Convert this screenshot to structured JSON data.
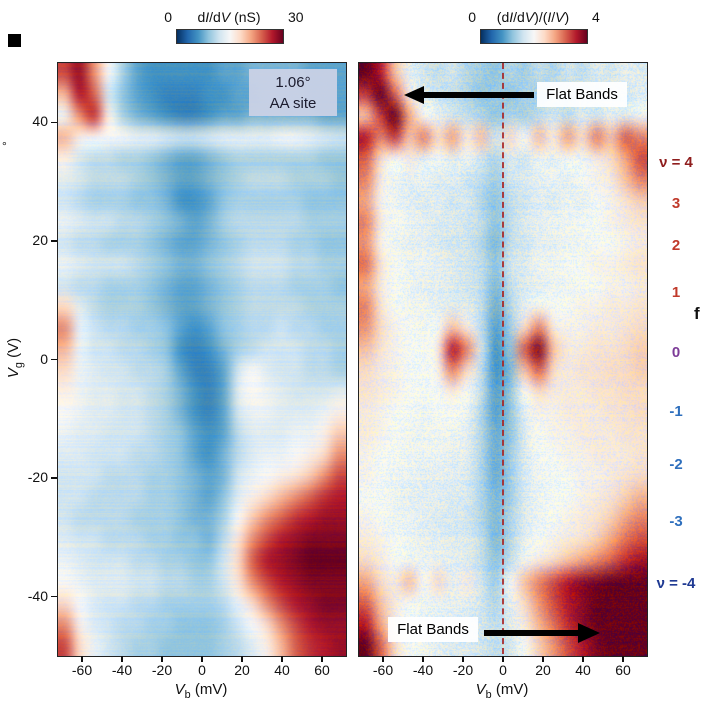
{
  "figure": {
    "degree_stray": "°",
    "panel_f": "f"
  },
  "colorbars": [
    {
      "min": "0",
      "max": "30",
      "title_html": "d<i>I</i>/d<i>V</i> (nS)"
    },
    {
      "min": "0",
      "max": "4",
      "title_html": "(d<i>I</i>/d<i>V</i>)/(<i>I</i>/<i>V</i>)"
    }
  ],
  "axes": {
    "x_label_html": "<i>V</i><sub>b</sub> (mV)",
    "y_label_html": "<i>V</i><sub>g</sub> (V)"
  },
  "annotations": {
    "angle": "1.06°",
    "site": "AA site",
    "flat_bands_top": "Flat Bands",
    "flat_bands_bottom": "Flat Bands"
  },
  "nu_labels": [
    {
      "text": "ν = 4",
      "vg": 33,
      "color": "#8f1d1d"
    },
    {
      "text": "3",
      "vg": 26,
      "color": "#c03a2b"
    },
    {
      "text": "2",
      "vg": 19,
      "color": "#c03a2b"
    },
    {
      "text": "1",
      "vg": 11,
      "color": "#c03a2b"
    },
    {
      "text": "0",
      "vg": 1,
      "color": "#7d3c98"
    },
    {
      "text": "-1",
      "vg": -9,
      "color": "#2e6fbd"
    },
    {
      "text": "-2",
      "vg": -18,
      "color": "#2e6fbd"
    },
    {
      "text": "-3",
      "vg": -27.5,
      "color": "#2e6fbd"
    },
    {
      "text": "ν = -4",
      "vg": -38,
      "color": "#1f3a93"
    }
  ],
  "chart_data": [
    {
      "type": "heatmap",
      "title": "dI/dV (nS) map, 1.06° AA site",
      "xlabel": "V_b (mV)",
      "ylabel": "V_g (V)",
      "x_range": [
        -72,
        72
      ],
      "y_range": [
        -50,
        50
      ],
      "x_ticks": [
        -60,
        -40,
        -20,
        0,
        20,
        40,
        60
      ],
      "y_ticks": [
        40,
        20,
        0,
        -20,
        -40
      ],
      "colormap": "RdBu_r",
      "colorbar": {
        "min": 0,
        "max": 30,
        "label": "dI/dV (nS)"
      },
      "grid_cols": 20,
      "grid_rows": 28,
      "noise": 0.035,
      "row_noise": 0.045,
      "values": [
        [
          25,
          28,
          22,
          15,
          10,
          7,
          6,
          6,
          6,
          6,
          6,
          7,
          7,
          8,
          8,
          8,
          8,
          7,
          7,
          7
        ],
        [
          20,
          27,
          24,
          12,
          9,
          7,
          6,
          5,
          5,
          5,
          6,
          6,
          7,
          7,
          8,
          8,
          8,
          7,
          7,
          7
        ],
        [
          14,
          22,
          26,
          16,
          10,
          8,
          7,
          6,
          5,
          5,
          6,
          7,
          7,
          8,
          8,
          8,
          8,
          8,
          7,
          7
        ],
        [
          20,
          16,
          15,
          15,
          15,
          14,
          14,
          13,
          12,
          12,
          13,
          14,
          14,
          14,
          14,
          15,
          15,
          14,
          13,
          12
        ],
        [
          16,
          12,
          11,
          11,
          10,
          10,
          9,
          8,
          7,
          7,
          8,
          9,
          10,
          10,
          10,
          10,
          10,
          10,
          9,
          9
        ],
        [
          13,
          12,
          11,
          11,
          11,
          10,
          9,
          8,
          7,
          7,
          8,
          9,
          10,
          11,
          11,
          11,
          10,
          10,
          10,
          9
        ],
        [
          12,
          11,
          10,
          10,
          10,
          9,
          9,
          8,
          6,
          6,
          7,
          9,
          10,
          10,
          10,
          10,
          10,
          9,
          9,
          9
        ],
        [
          14,
          13,
          12,
          12,
          11,
          11,
          10,
          9,
          8,
          7,
          8,
          10,
          11,
          11,
          11,
          11,
          11,
          10,
          10,
          10
        ],
        [
          12,
          11,
          11,
          10,
          10,
          10,
          9,
          8,
          7,
          7,
          8,
          9,
          10,
          11,
          11,
          11,
          10,
          10,
          9,
          9
        ],
        [
          14,
          13,
          12,
          12,
          12,
          11,
          10,
          9,
          8,
          8,
          9,
          10,
          11,
          12,
          12,
          12,
          11,
          11,
          10,
          10
        ],
        [
          12,
          11,
          11,
          10,
          10,
          10,
          9,
          8,
          7,
          7,
          8,
          9,
          10,
          11,
          11,
          11,
          10,
          10,
          10,
          9
        ],
        [
          18,
          13,
          11,
          10,
          10,
          10,
          9,
          8,
          7,
          7,
          8,
          9,
          10,
          11,
          11,
          11,
          11,
          10,
          10,
          10
        ],
        [
          22,
          14,
          12,
          11,
          11,
          10,
          10,
          9,
          7,
          6,
          7,
          9,
          10,
          11,
          11,
          12,
          11,
          11,
          10,
          10
        ],
        [
          20,
          14,
          12,
          12,
          11,
          11,
          10,
          9,
          6,
          5,
          6,
          8,
          10,
          11,
          12,
          12,
          12,
          11,
          11,
          10
        ],
        [
          18,
          14,
          13,
          12,
          12,
          11,
          11,
          10,
          7,
          5,
          5,
          7,
          12,
          15,
          13,
          12,
          12,
          11,
          11,
          10
        ],
        [
          16,
          14,
          13,
          13,
          12,
          12,
          11,
          10,
          8,
          6,
          5,
          7,
          13,
          15,
          14,
          13,
          12,
          12,
          12,
          13
        ],
        [
          15,
          14,
          13,
          13,
          12,
          12,
          11,
          10,
          8,
          6,
          5,
          7,
          12,
          14,
          14,
          13,
          13,
          13,
          14,
          16
        ],
        [
          14,
          13,
          13,
          12,
          12,
          12,
          11,
          10,
          9,
          7,
          6,
          7,
          11,
          13,
          13,
          13,
          14,
          14,
          16,
          19
        ],
        [
          13,
          13,
          12,
          12,
          12,
          11,
          11,
          10,
          9,
          7,
          6,
          8,
          11,
          13,
          14,
          14,
          15,
          16,
          18,
          22
        ],
        [
          12,
          12,
          12,
          11,
          11,
          11,
          10,
          10,
          9,
          8,
          7,
          8,
          12,
          14,
          15,
          16,
          17,
          19,
          22,
          25
        ],
        [
          12,
          12,
          11,
          11,
          11,
          11,
          10,
          10,
          9,
          8,
          7,
          9,
          13,
          16,
          18,
          20,
          22,
          24,
          26,
          27
        ],
        [
          12,
          11,
          11,
          11,
          11,
          10,
          10,
          10,
          9,
          8,
          8,
          10,
          15,
          19,
          22,
          24,
          26,
          27,
          28,
          28
        ],
        [
          13,
          12,
          12,
          11,
          11,
          11,
          10,
          10,
          9,
          9,
          8,
          11,
          17,
          22,
          25,
          27,
          28,
          29,
          29,
          29
        ],
        [
          14,
          13,
          12,
          12,
          12,
          11,
          11,
          10,
          10,
          9,
          9,
          12,
          18,
          24,
          27,
          28,
          29,
          30,
          30,
          30
        ],
        [
          15,
          14,
          13,
          13,
          13,
          12,
          12,
          11,
          11,
          10,
          10,
          12,
          17,
          22,
          25,
          27,
          28,
          29,
          29,
          29
        ],
        [
          18,
          15,
          13,
          12,
          12,
          11,
          11,
          10,
          10,
          10,
          10,
          11,
          14,
          18,
          22,
          25,
          27,
          28,
          29,
          29
        ],
        [
          22,
          16,
          13,
          12,
          11,
          11,
          10,
          10,
          9,
          9,
          9,
          10,
          12,
          15,
          18,
          22,
          25,
          27,
          28,
          28
        ],
        [
          25,
          18,
          14,
          12,
          11,
          10,
          10,
          9,
          9,
          9,
          9,
          10,
          11,
          13,
          16,
          20,
          24,
          26,
          27,
          28
        ]
      ]
    },
    {
      "type": "heatmap",
      "title": "(dI/dV)/(I/V) map with flat-band features",
      "xlabel": "V_b (mV)",
      "ylabel": "V_g (V)",
      "x_range": [
        -72,
        72
      ],
      "y_range": [
        -50,
        50
      ],
      "x_ticks": [
        -60,
        -40,
        -20,
        0,
        20,
        40,
        60
      ],
      "y_ticks": [
        40,
        20,
        0,
        -20,
        -40
      ],
      "colormap": "RdBu_r",
      "colorbar": {
        "min": 0,
        "max": 4,
        "label": "(dI/dV)/(I/V)"
      },
      "grid_cols": 20,
      "grid_rows": 28,
      "noise": 0.13,
      "row_noise": 0.04,
      "values": [
        [
          4,
          3.6,
          2.6,
          1.8,
          1.6,
          1.5,
          1.6,
          1.4,
          1.3,
          1.2,
          1.4,
          1.3,
          1.5,
          1.4,
          1.6,
          1.5,
          1.7,
          1.6,
          1.8,
          1.7
        ],
        [
          3.4,
          4,
          3.2,
          2.2,
          1.7,
          1.6,
          1.5,
          1.4,
          1.2,
          1.3,
          1.2,
          1.4,
          1.3,
          1.5,
          1.4,
          1.6,
          1.5,
          1.7,
          1.6,
          1.8
        ],
        [
          2.6,
          3.4,
          4,
          2.8,
          2,
          1.8,
          1.6,
          1.5,
          1.4,
          1.2,
          1.4,
          1.3,
          1.5,
          1.6,
          1.5,
          1.7,
          1.6,
          1.8,
          1.7,
          1.9
        ],
        [
          3.6,
          3,
          3.4,
          2.6,
          3,
          2.4,
          2.8,
          2.2,
          2.6,
          1.6,
          2.4,
          2,
          2.6,
          2.2,
          2.8,
          2.4,
          3,
          2.6,
          3.2,
          3
        ],
        [
          3.2,
          2.4,
          2,
          2.2,
          1.8,
          2,
          1.7,
          1.9,
          1.6,
          1.4,
          1.7,
          1.6,
          1.9,
          1.8,
          2,
          1.9,
          2.2,
          2.4,
          2.8,
          3.3
        ],
        [
          3,
          2.2,
          1.9,
          1.8,
          1.9,
          1.7,
          1.8,
          1.6,
          1.5,
          1.3,
          1.6,
          1.7,
          1.8,
          1.9,
          1.8,
          2,
          2.1,
          2.2,
          2.6,
          3
        ],
        [
          2.8,
          2.1,
          1.9,
          1.8,
          1.7,
          1.8,
          1.6,
          1.7,
          1.4,
          1.2,
          1.5,
          1.6,
          1.8,
          1.7,
          1.9,
          1.8,
          2,
          2.1,
          2.3,
          2.5
        ],
        [
          3,
          2.2,
          2,
          1.9,
          1.8,
          1.7,
          1.7,
          1.6,
          1.5,
          1.2,
          1.5,
          1.7,
          1.8,
          1.9,
          1.9,
          2,
          2,
          2.1,
          2.2,
          2.3
        ],
        [
          2.9,
          2.1,
          1.9,
          1.8,
          1.8,
          1.7,
          1.6,
          1.6,
          1.4,
          1.1,
          1.5,
          1.6,
          1.8,
          1.8,
          1.9,
          1.9,
          2,
          2,
          2.1,
          2.2
        ],
        [
          3.1,
          2.3,
          2,
          1.9,
          1.9,
          1.8,
          1.7,
          1.6,
          1.5,
          1.2,
          1.6,
          1.7,
          1.9,
          1.9,
          2,
          2,
          2.1,
          2.1,
          2.2,
          2.3
        ],
        [
          2.8,
          2.2,
          2,
          1.9,
          1.8,
          1.8,
          1.7,
          1.6,
          1.5,
          1.1,
          1.5,
          1.7,
          1.8,
          1.9,
          1.9,
          2,
          2,
          2.1,
          2.1,
          2.2
        ],
        [
          3,
          2.3,
          2,
          1.9,
          1.9,
          1.8,
          1.7,
          1.7,
          1.5,
          1,
          1.4,
          1.8,
          1.9,
          2,
          2,
          2.1,
          2.1,
          2.2,
          2.2,
          2.3
        ],
        [
          2.9,
          2.4,
          2.1,
          2,
          1.9,
          2,
          2.6,
          2.2,
          1.5,
          0.9,
          1.3,
          2.4,
          3,
          2.2,
          2.1,
          2.1,
          2.2,
          2.2,
          2.3,
          2.4
        ],
        [
          2.6,
          2.3,
          2.1,
          2,
          2,
          2.2,
          3.6,
          3,
          1.6,
          0.8,
          1.2,
          3.2,
          3.9,
          2.6,
          2.2,
          2.2,
          2.3,
          2.3,
          2.4,
          2.5
        ],
        [
          2.4,
          2.2,
          2.1,
          2,
          2,
          2.1,
          3,
          2.4,
          1.5,
          0.8,
          1.1,
          2.6,
          3.2,
          2.4,
          2.2,
          2.3,
          2.3,
          2.4,
          2.4,
          2.5
        ],
        [
          2.3,
          2.2,
          2.1,
          2,
          2,
          2,
          2.2,
          2,
          1.5,
          0.9,
          1.2,
          2,
          2.4,
          2.2,
          2.2,
          2.2,
          2.3,
          2.3,
          2.4,
          2.4
        ],
        [
          2.2,
          2.1,
          2,
          2,
          1.9,
          2,
          2,
          1.9,
          1.4,
          0.9,
          1.2,
          1.8,
          2.1,
          2.1,
          2.2,
          2.2,
          2.2,
          2.3,
          2.3,
          2.4
        ],
        [
          2.2,
          2.1,
          2,
          1.9,
          1.9,
          1.9,
          1.9,
          1.8,
          1.4,
          1,
          1.2,
          1.7,
          2,
          2.1,
          2.1,
          2.2,
          2.2,
          2.2,
          2.3,
          2.3
        ],
        [
          2.1,
          2,
          2,
          1.9,
          1.9,
          1.9,
          1.8,
          1.8,
          1.4,
          1,
          1.3,
          1.7,
          2,
          2,
          2.1,
          2.1,
          2.2,
          2.2,
          2.2,
          2.3
        ],
        [
          2.1,
          2,
          1.9,
          1.9,
          1.8,
          1.8,
          1.8,
          1.7,
          1.4,
          1,
          1.3,
          1.7,
          1.9,
          2,
          2,
          2.1,
          2.1,
          2.2,
          2.3,
          2.4
        ],
        [
          2,
          2,
          1.9,
          1.8,
          1.8,
          1.8,
          1.7,
          1.7,
          1.4,
          1.1,
          1.3,
          1.7,
          1.9,
          2,
          2,
          2.1,
          2.2,
          2.3,
          2.5,
          2.7
        ],
        [
          2.1,
          2,
          1.9,
          1.9,
          1.8,
          1.7,
          1.7,
          1.6,
          1.4,
          1.1,
          1.4,
          1.7,
          1.9,
          2,
          2.1,
          2.2,
          2.3,
          2.5,
          2.8,
          3
        ],
        [
          2.2,
          2.1,
          2,
          1.9,
          1.8,
          1.8,
          1.7,
          1.7,
          1.5,
          1.1,
          1.4,
          1.8,
          2,
          2.1,
          2.2,
          2.3,
          2.5,
          2.8,
          3.1,
          3.3
        ],
        [
          2.4,
          2.2,
          2,
          1.9,
          1.9,
          1.8,
          1.8,
          1.7,
          1.5,
          1.2,
          1.5,
          1.9,
          2.2,
          2.4,
          2.6,
          2.8,
          3,
          3.2,
          3.5,
          3.7
        ],
        [
          2.8,
          2.4,
          2.2,
          2.6,
          2,
          2.4,
          1.8,
          2.2,
          1.6,
          1.3,
          2,
          2.6,
          3,
          3.3,
          3.6,
          3.8,
          3.9,
          4,
          4,
          4
        ],
        [
          3.2,
          2.6,
          2.2,
          2,
          1.9,
          1.9,
          1.8,
          1.8,
          1.6,
          1.4,
          1.8,
          2.4,
          2.9,
          3.3,
          3.6,
          3.8,
          4,
          4,
          4,
          4
        ],
        [
          3.6,
          2.8,
          2.2,
          2,
          1.9,
          1.8,
          1.8,
          1.7,
          1.6,
          1.5,
          1.7,
          2.2,
          2.7,
          3.1,
          3.5,
          3.8,
          4,
          4,
          4,
          4
        ],
        [
          4,
          3.2,
          2.4,
          2,
          1.9,
          1.8,
          1.7,
          1.7,
          1.6,
          1.5,
          1.6,
          2,
          2.5,
          2.9,
          3.3,
          3.6,
          3.9,
          4,
          4,
          4
        ]
      ]
    }
  ]
}
